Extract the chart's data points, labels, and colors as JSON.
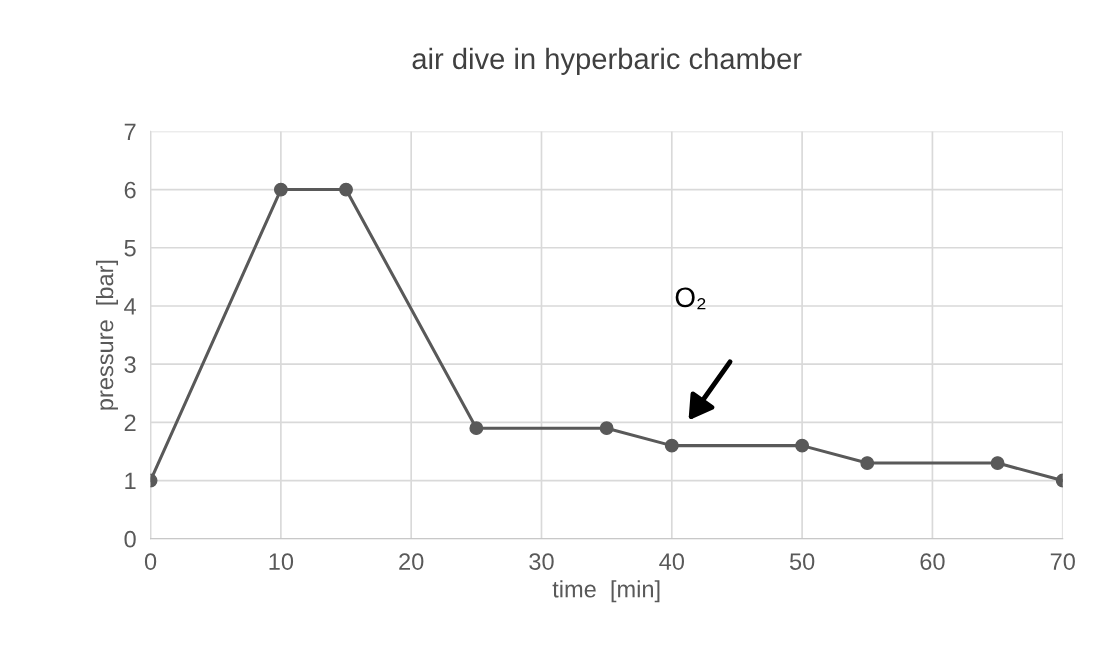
{
  "chart_data": {
    "type": "line",
    "title": "air dive in hyperbaric chamber",
    "xlabel": "time  [min]",
    "ylabel": "pressure  [bar]",
    "x": [
      0,
      10,
      15,
      25,
      35,
      40,
      50,
      55,
      65,
      70
    ],
    "series": [
      {
        "color": "#595959",
        "values": [
          1,
          6,
          6,
          1.9,
          1.9,
          1.6,
          1.6,
          1.3,
          1.3,
          1
        ]
      }
    ],
    "xlim": [
      0,
      70
    ],
    "xticks": [
      0,
      10,
      20,
      30,
      40,
      50,
      60,
      70
    ],
    "ylim": [
      0,
      7
    ],
    "yticks": [
      0,
      1,
      2,
      3,
      4,
      5,
      6,
      7
    ],
    "grid": true,
    "marker": "circle",
    "line_style": "solid",
    "legend": false,
    "annotations": [
      "O₂"
    ]
  }
}
